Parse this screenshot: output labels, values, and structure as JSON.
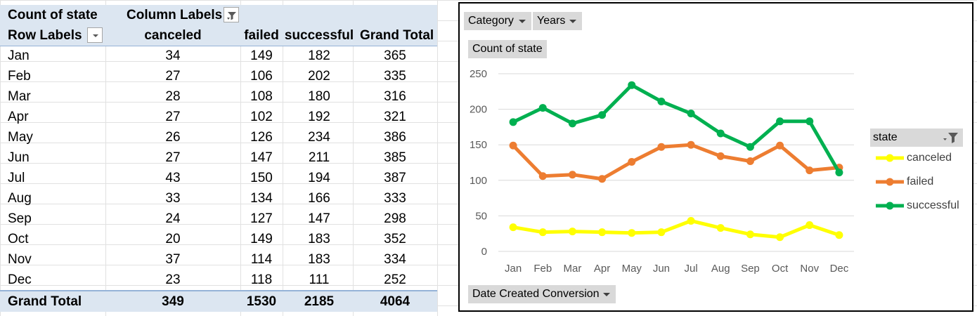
{
  "pivot": {
    "header1": {
      "corner": "Count of state",
      "column_labels": "Column Labels"
    },
    "header2": {
      "row_labels": "Row Labels",
      "columns": [
        "canceled",
        "failed",
        "successful",
        "Grand Total"
      ]
    },
    "rows": [
      {
        "label": "Jan",
        "values": [
          "34",
          "149",
          "182",
          "365"
        ]
      },
      {
        "label": "Feb",
        "values": [
          "27",
          "106",
          "202",
          "335"
        ]
      },
      {
        "label": "Mar",
        "values": [
          "28",
          "108",
          "180",
          "316"
        ]
      },
      {
        "label": "Apr",
        "values": [
          "27",
          "102",
          "192",
          "321"
        ]
      },
      {
        "label": "May",
        "values": [
          "26",
          "126",
          "234",
          "386"
        ]
      },
      {
        "label": "Jun",
        "values": [
          "27",
          "147",
          "211",
          "385"
        ]
      },
      {
        "label": "Jul",
        "values": [
          "43",
          "150",
          "194",
          "387"
        ]
      },
      {
        "label": "Aug",
        "values": [
          "33",
          "134",
          "166",
          "333"
        ]
      },
      {
        "label": "Sep",
        "values": [
          "24",
          "127",
          "147",
          "298"
        ]
      },
      {
        "label": "Oct",
        "values": [
          "20",
          "149",
          "183",
          "352"
        ]
      },
      {
        "label": "Nov",
        "values": [
          "37",
          "114",
          "183",
          "334"
        ]
      },
      {
        "label": "Dec",
        "values": [
          "23",
          "118",
          "111",
          "252"
        ]
      }
    ],
    "total": {
      "label": "Grand Total",
      "values": [
        "349",
        "1530",
        "2185",
        "4064"
      ]
    }
  },
  "chart_buttons": {
    "category": "Category",
    "years": "Years",
    "value_field": "Count of state",
    "axis_field": "Date Created Conversion",
    "legend_field": "state"
  },
  "chart_data": {
    "type": "line",
    "title": "",
    "categories": [
      "Jan",
      "Feb",
      "Mar",
      "Apr",
      "May",
      "Jun",
      "Jul",
      "Aug",
      "Sep",
      "Oct",
      "Nov",
      "Dec"
    ],
    "ylim": [
      0,
      250
    ],
    "yticks": [
      "0",
      "50",
      "100",
      "150",
      "200",
      "250"
    ],
    "grid": true,
    "legend": "right",
    "series": [
      {
        "name": "canceled",
        "color": "#ffff00",
        "values": [
          34,
          27,
          28,
          27,
          26,
          27,
          43,
          33,
          24,
          20,
          37,
          23
        ]
      },
      {
        "name": "failed",
        "color": "#ed7d31",
        "values": [
          149,
          106,
          108,
          102,
          126,
          147,
          150,
          134,
          127,
          149,
          114,
          118
        ]
      },
      {
        "name": "successful",
        "color": "#00b050",
        "values": [
          182,
          202,
          180,
          192,
          234,
          211,
          194,
          166,
          147,
          183,
          183,
          111
        ]
      }
    ]
  },
  "colors": {
    "header_fill": "#dce6f1",
    "button_fill": "#d9d9d9",
    "gridline": "#d9d9d9"
  },
  "icons": {
    "column_filter": "filter-icon",
    "row_dropdown": "dropdown-icon",
    "legend_filter": "filter-icon"
  }
}
